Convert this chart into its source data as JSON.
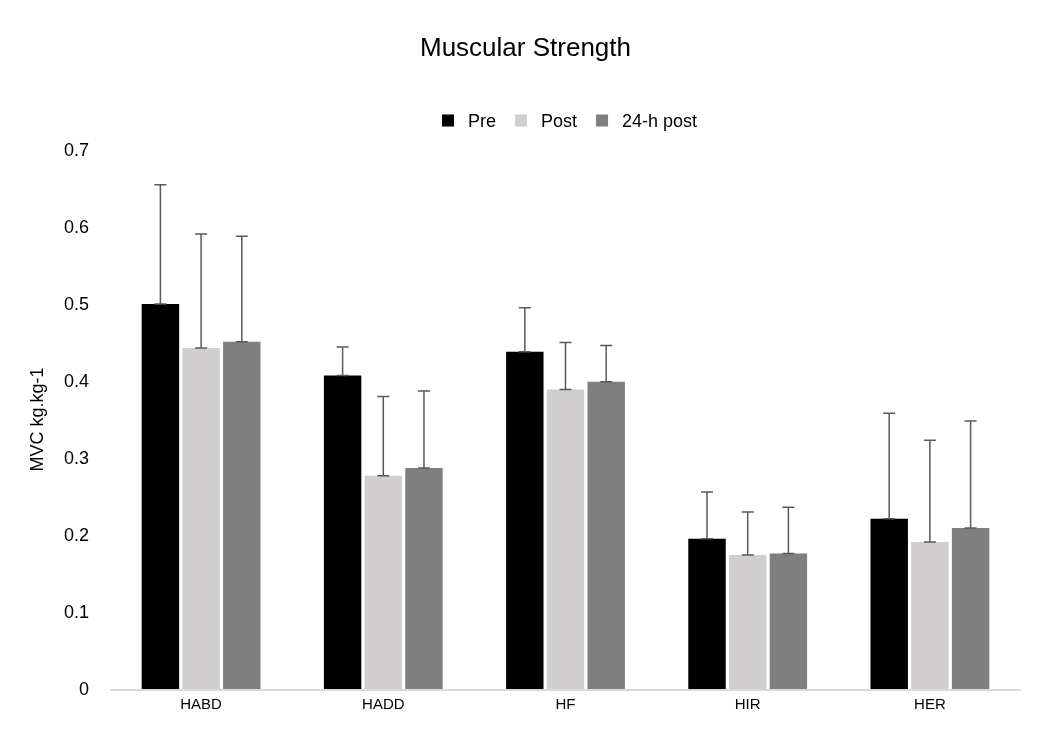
{
  "chart_data": {
    "type": "bar",
    "title": "Muscular Strength",
    "ylabel": "MVC kg.kg-1",
    "categories": [
      "HABD",
      "HADD",
      "HF",
      "HIR",
      "HER"
    ],
    "series": [
      {
        "name": "Pre",
        "color": "#000000",
        "values": [
          0.5,
          0.407,
          0.438,
          0.195,
          0.221
        ],
        "errors": [
          [
            0.5,
            0.655
          ],
          [
            0.407,
            0.444
          ],
          [
            0.438,
            0.495
          ],
          [
            0.195,
            0.256
          ],
          [
            0.221,
            0.358
          ]
        ]
      },
      {
        "name": "Post",
        "color": "#d0cece",
        "values": [
          0.443,
          0.277,
          0.389,
          0.174,
          0.191
        ],
        "errors": [
          [
            0.443,
            0.591
          ],
          [
            0.277,
            0.38
          ],
          [
            0.389,
            0.45
          ],
          [
            0.174,
            0.23
          ],
          [
            0.191,
            0.323
          ]
        ]
      },
      {
        "name": "24-h post",
        "color": "#7f7f7f",
        "values": [
          0.451,
          0.287,
          0.399,
          0.176,
          0.209
        ],
        "errors": [
          [
            0.451,
            0.588
          ],
          [
            0.287,
            0.387
          ],
          [
            0.399,
            0.446
          ],
          [
            0.176,
            0.236
          ],
          [
            0.209,
            0.348
          ]
        ]
      }
    ],
    "ylim": [
      0,
      0.7
    ],
    "yticks": [
      0,
      0.1,
      0.2,
      0.3,
      0.4,
      0.5,
      0.6,
      0.7
    ],
    "grid": false,
    "legend": "top"
  }
}
